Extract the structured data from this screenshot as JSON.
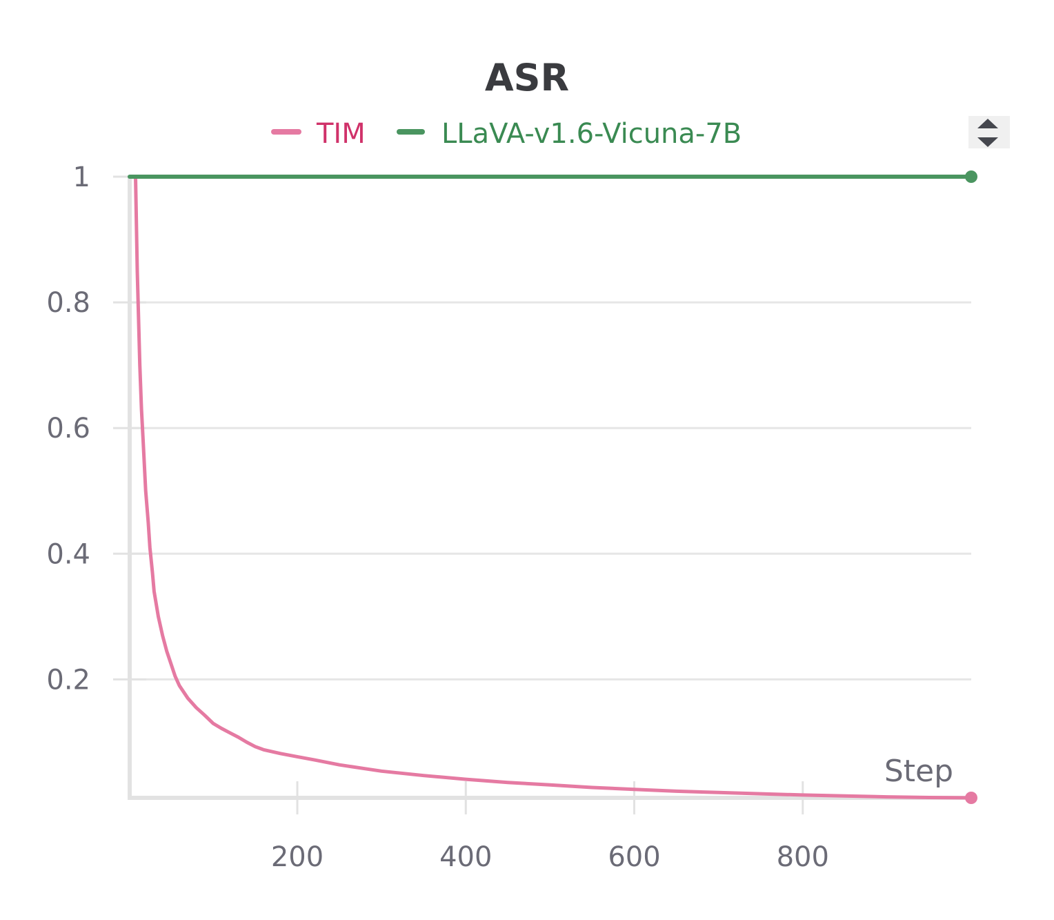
{
  "colors": {
    "TIM": "#e57aa2",
    "LLaVA-v1.6-Vicuna-7B": "#4a9560",
    "tim_legend_text": "#d0326a",
    "llava_legend_text": "#3a8a52"
  },
  "legend_toggle": {
    "icon": "sort-toggle-icon"
  },
  "chart_data": {
    "type": "line",
    "title": "ASR",
    "xlabel": "Step",
    "ylabel": "",
    "xlim": [
      1,
      1000
    ],
    "ylim": [
      0.0115,
      1
    ],
    "x_ticks": [
      200,
      400,
      600,
      800
    ],
    "x_tick_labels": [
      "200",
      "400",
      "600",
      "800"
    ],
    "y_ticks": [
      0.2,
      0.4,
      0.6,
      0.8,
      1
    ],
    "y_tick_labels": [
      "0.2",
      "0.4",
      "0.6",
      "0.8",
      "1"
    ],
    "grid": true,
    "legend_position": "top",
    "series": [
      {
        "name": "TIM",
        "x": [
          8,
          10,
          13,
          15,
          17,
          20,
          23,
          25,
          28,
          30,
          35,
          40,
          45,
          50,
          55,
          60,
          70,
          80,
          90,
          100,
          110,
          120,
          130,
          140,
          150,
          160,
          180,
          200,
          220,
          250,
          280,
          300,
          350,
          400,
          450,
          500,
          550,
          600,
          650,
          700,
          750,
          800,
          850,
          900,
          950,
          1000
        ],
        "y": [
          1.0,
          0.85,
          0.7,
          0.63,
          0.58,
          0.5,
          0.45,
          0.41,
          0.37,
          0.34,
          0.3,
          0.27,
          0.245,
          0.225,
          0.205,
          0.19,
          0.17,
          0.155,
          0.143,
          0.13,
          0.122,
          0.115,
          0.108,
          0.1,
          0.093,
          0.088,
          0.082,
          0.077,
          0.072,
          0.064,
          0.058,
          0.054,
          0.047,
          0.041,
          0.036,
          0.032,
          0.028,
          0.025,
          0.022,
          0.02,
          0.018,
          0.016,
          0.0145,
          0.013,
          0.012,
          0.0115
        ]
      },
      {
        "name": "LLaVA-v1.6-Vicuna-7B",
        "x": [
          1,
          1000
        ],
        "y": [
          1,
          1
        ]
      }
    ]
  }
}
